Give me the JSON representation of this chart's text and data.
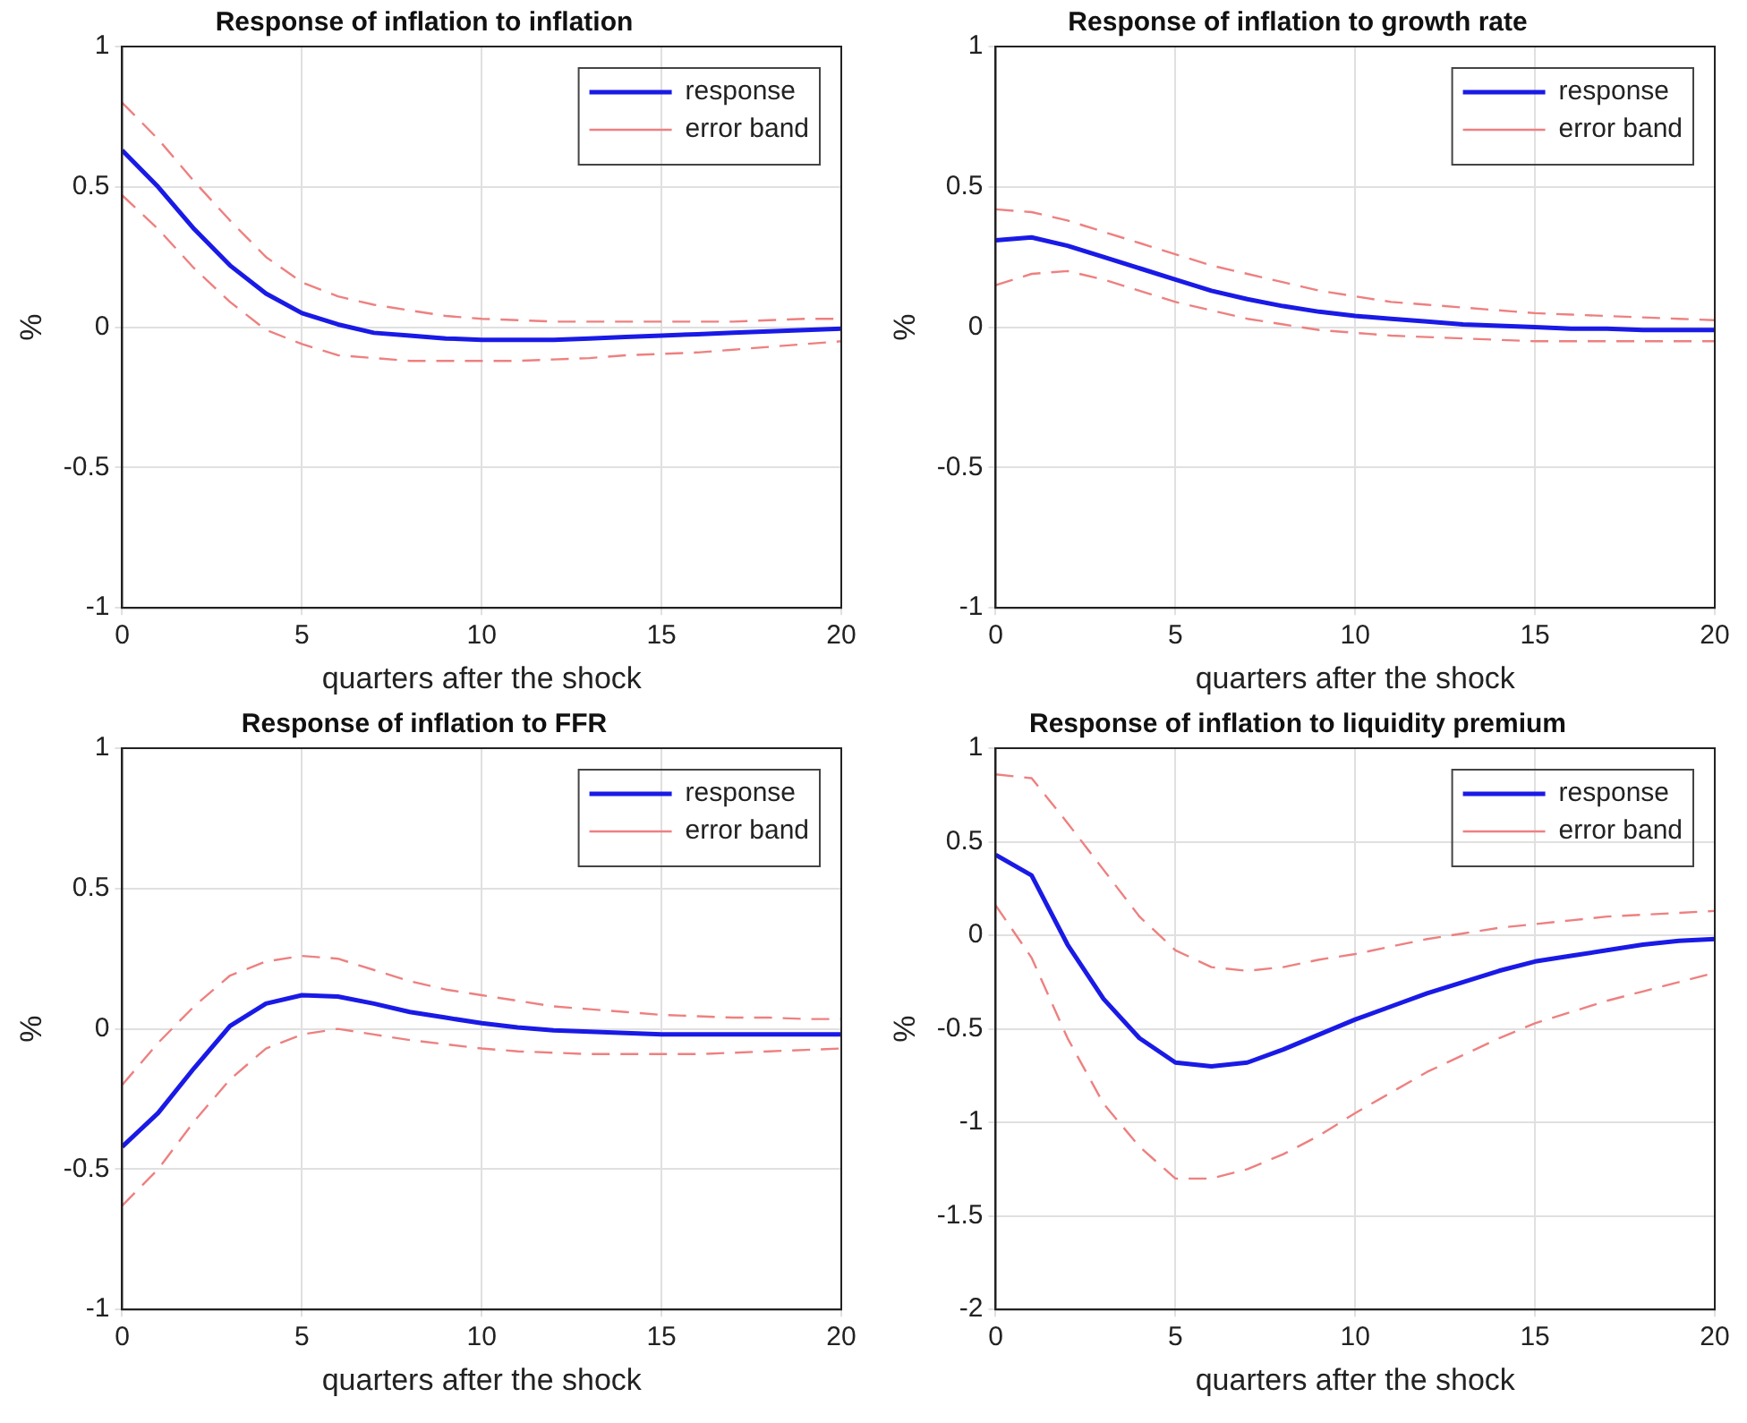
{
  "chart_data": [
    {
      "type": "line",
      "title": "Response of inflation to inflation",
      "xlabel": "quarters after the shock",
      "ylabel": "%",
      "x": [
        0,
        1,
        2,
        3,
        4,
        5,
        6,
        7,
        8,
        9,
        10,
        11,
        12,
        13,
        14,
        15,
        16,
        17,
        18,
        19,
        20
      ],
      "xlim": [
        0,
        20
      ],
      "xticks": [
        0,
        5,
        10,
        15,
        20
      ],
      "ylim": [
        -1,
        1
      ],
      "yticks": [
        -1,
        -0.5,
        0,
        0.5,
        1
      ],
      "grid": true,
      "legend": "top right",
      "series": [
        {
          "name": "response",
          "color": "#1a1ae6",
          "line_style": "solid",
          "values": [
            0.63,
            0.5,
            0.35,
            0.22,
            0.12,
            0.05,
            0.01,
            -0.02,
            -0.03,
            -0.04,
            -0.045,
            -0.045,
            -0.045,
            -0.04,
            -0.035,
            -0.03,
            -0.025,
            -0.02,
            -0.015,
            -0.01,
            -0.005
          ]
        },
        {
          "name": "error band",
          "color": "#ee8080",
          "line_style": "dashed",
          "values": [
            0.8,
            0.67,
            0.52,
            0.38,
            0.25,
            0.16,
            0.11,
            0.08,
            0.06,
            0.04,
            0.03,
            0.025,
            0.02,
            0.02,
            0.02,
            0.02,
            0.02,
            0.02,
            0.025,
            0.03,
            0.03
          ]
        },
        {
          "color": "#ee8080",
          "line_style": "dashed",
          "values": [
            0.47,
            0.35,
            0.21,
            0.09,
            -0.01,
            -0.06,
            -0.1,
            -0.11,
            -0.12,
            -0.12,
            -0.12,
            -0.12,
            -0.115,
            -0.11,
            -0.1,
            -0.095,
            -0.09,
            -0.08,
            -0.07,
            -0.06,
            -0.05
          ]
        }
      ]
    },
    {
      "type": "line",
      "title": "Response of inflation to growth rate",
      "xlabel": "quarters after the shock",
      "ylabel": "%",
      "x": [
        0,
        1,
        2,
        3,
        4,
        5,
        6,
        7,
        8,
        9,
        10,
        11,
        12,
        13,
        14,
        15,
        16,
        17,
        18,
        19,
        20
      ],
      "xlim": [
        0,
        20
      ],
      "xticks": [
        0,
        5,
        10,
        15,
        20
      ],
      "ylim": [
        -1,
        1
      ],
      "yticks": [
        -1,
        -0.5,
        0,
        0.5,
        1
      ],
      "grid": true,
      "legend": "top right",
      "series": [
        {
          "name": "response",
          "color": "#1a1ae6",
          "line_style": "solid",
          "values": [
            0.31,
            0.32,
            0.29,
            0.25,
            0.21,
            0.17,
            0.13,
            0.1,
            0.075,
            0.055,
            0.04,
            0.03,
            0.02,
            0.01,
            0.005,
            0,
            -0.005,
            -0.005,
            -0.01,
            -0.01,
            -0.01
          ]
        },
        {
          "name": "error band",
          "color": "#ee8080",
          "line_style": "dashed",
          "values": [
            0.42,
            0.41,
            0.38,
            0.34,
            0.3,
            0.26,
            0.22,
            0.19,
            0.16,
            0.13,
            0.11,
            0.09,
            0.08,
            0.07,
            0.06,
            0.05,
            0.045,
            0.04,
            0.035,
            0.03,
            0.025
          ]
        },
        {
          "color": "#ee8080",
          "line_style": "dashed",
          "values": [
            0.15,
            0.19,
            0.2,
            0.17,
            0.13,
            0.09,
            0.06,
            0.03,
            0.01,
            -0.01,
            -0.02,
            -0.03,
            -0.035,
            -0.04,
            -0.045,
            -0.05,
            -0.05,
            -0.05,
            -0.05,
            -0.05,
            -0.05
          ]
        }
      ]
    },
    {
      "type": "line",
      "title": "Response of inflation to FFR",
      "xlabel": "quarters after the shock",
      "ylabel": "%",
      "x": [
        0,
        1,
        2,
        3,
        4,
        5,
        6,
        7,
        8,
        9,
        10,
        11,
        12,
        13,
        14,
        15,
        16,
        17,
        18,
        19,
        20
      ],
      "xlim": [
        0,
        20
      ],
      "xticks": [
        0,
        5,
        10,
        15,
        20
      ],
      "ylim": [
        -1,
        1
      ],
      "yticks": [
        -1,
        -0.5,
        0,
        0.5,
        1
      ],
      "grid": true,
      "legend": "top right",
      "series": [
        {
          "name": "response",
          "color": "#1a1ae6",
          "line_style": "solid",
          "values": [
            -0.42,
            -0.3,
            -0.14,
            0.01,
            0.09,
            0.12,
            0.115,
            0.09,
            0.06,
            0.04,
            0.02,
            0.005,
            -0.005,
            -0.01,
            -0.015,
            -0.02,
            -0.02,
            -0.02,
            -0.02,
            -0.02,
            -0.02
          ]
        },
        {
          "name": "error band",
          "color": "#ee8080",
          "line_style": "dashed",
          "values": [
            -0.2,
            -0.05,
            0.08,
            0.19,
            0.24,
            0.26,
            0.25,
            0.21,
            0.17,
            0.14,
            0.12,
            0.1,
            0.08,
            0.07,
            0.06,
            0.05,
            0.045,
            0.04,
            0.04,
            0.035,
            0.035
          ]
        },
        {
          "color": "#ee8080",
          "line_style": "dashed",
          "values": [
            -0.63,
            -0.5,
            -0.33,
            -0.18,
            -0.07,
            -0.02,
            0,
            -0.02,
            -0.04,
            -0.055,
            -0.07,
            -0.08,
            -0.085,
            -0.09,
            -0.09,
            -0.09,
            -0.09,
            -0.085,
            -0.08,
            -0.075,
            -0.07
          ]
        }
      ]
    },
    {
      "type": "line",
      "title": "Response of inflation to liquidity premium",
      "xlabel": "quarters after the shock",
      "ylabel": "%",
      "x": [
        0,
        1,
        2,
        3,
        4,
        5,
        6,
        7,
        8,
        9,
        10,
        11,
        12,
        13,
        14,
        15,
        16,
        17,
        18,
        19,
        20
      ],
      "xlim": [
        0,
        20
      ],
      "xticks": [
        0,
        5,
        10,
        15,
        20
      ],
      "ylim": [
        -2,
        1
      ],
      "yticks": [
        -2,
        -1.5,
        -1,
        -0.5,
        0,
        0.5,
        1
      ],
      "grid": true,
      "legend": "top right",
      "series": [
        {
          "name": "response",
          "color": "#1a1ae6",
          "line_style": "solid",
          "values": [
            0.43,
            0.32,
            -0.05,
            -0.34,
            -0.55,
            -0.68,
            -0.7,
            -0.68,
            -0.61,
            -0.53,
            -0.45,
            -0.38,
            -0.31,
            -0.25,
            -0.19,
            -0.14,
            -0.11,
            -0.08,
            -0.05,
            -0.03,
            -0.02
          ]
        },
        {
          "name": "error band",
          "color": "#ee8080",
          "line_style": "dashed",
          "values": [
            0.86,
            0.84,
            0.6,
            0.35,
            0.1,
            -0.08,
            -0.17,
            -0.19,
            -0.17,
            -0.13,
            -0.1,
            -0.06,
            -0.02,
            0.01,
            0.04,
            0.06,
            0.08,
            0.1,
            0.11,
            0.12,
            0.13
          ]
        },
        {
          "color": "#ee8080",
          "line_style": "dashed",
          "values": [
            0.16,
            -0.12,
            -0.55,
            -0.9,
            -1.13,
            -1.3,
            -1.3,
            -1.25,
            -1.17,
            -1.07,
            -0.95,
            -0.84,
            -0.73,
            -0.64,
            -0.55,
            -0.47,
            -0.41,
            -0.35,
            -0.3,
            -0.25,
            -0.2
          ]
        }
      ]
    }
  ]
}
